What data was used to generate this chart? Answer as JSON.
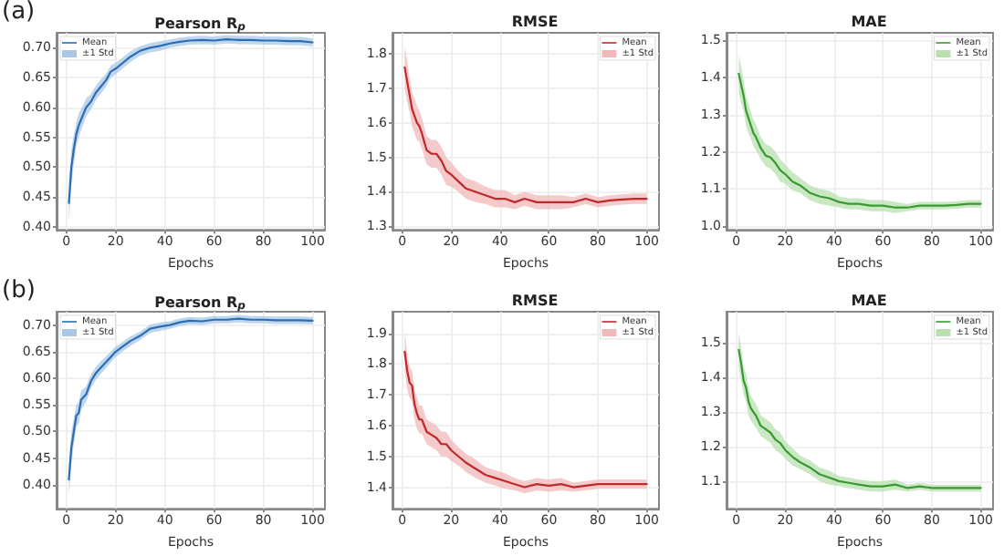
{
  "chart_data": [
    {
      "type": "line",
      "title": "Pearson R$_{p}$",
      "xlabel": "Epochs",
      "annotations": [
        "(a)"
      ],
      "legend": "top left",
      "grid": true,
      "line_style": "solid",
      "x": [
        1,
        2,
        3,
        4,
        5,
        6,
        7,
        8,
        10,
        12,
        14,
        16,
        18,
        20,
        23,
        26,
        30,
        34,
        38,
        42,
        46,
        50,
        55,
        60,
        65,
        70,
        75,
        80,
        85,
        90,
        95,
        100
      ],
      "xlim": [
        -4,
        105
      ],
      "xticks": [
        0,
        20,
        40,
        60,
        80,
        100
      ],
      "ylim": [
        0.395,
        0.725
      ],
      "yticks": [
        {
          "value": 0.4,
          "label": "0.40"
        },
        0.45,
        {
          "value": 0.5,
          "label": "0.50"
        },
        0.55,
        {
          "value": 0.6,
          "label": "0.60"
        },
        0.65,
        {
          "value": 0.7,
          "label": "0.70"
        }
      ],
      "series": [
        {
          "name": "Mean",
          "color": "#2a6db5",
          "values": [
            0.44,
            0.5,
            0.53,
            0.555,
            0.57,
            0.58,
            0.59,
            0.6,
            0.61,
            0.625,
            0.635,
            0.645,
            0.66,
            0.665,
            0.675,
            0.685,
            0.695,
            0.7,
            0.703,
            0.707,
            0.71,
            0.712,
            0.713,
            0.712,
            0.714,
            0.713,
            0.713,
            0.712,
            0.712,
            0.711,
            0.711,
            0.709
          ]
        },
        {
          "name": "±1 Std",
          "type": "area",
          "color": "#aac8e6",
          "values": [
            null,
            null,
            null,
            null,
            null,
            null,
            null,
            null,
            null,
            null,
            null,
            null,
            null,
            null,
            null,
            null,
            null,
            null,
            null,
            null,
            null,
            null,
            null,
            null,
            null,
            null,
            null,
            null,
            null,
            null,
            null,
            null
          ],
          "lower": [
            0.41,
            0.47,
            0.505,
            0.535,
            0.55,
            0.562,
            0.574,
            0.585,
            0.597,
            0.613,
            0.623,
            0.634,
            0.65,
            0.655,
            0.666,
            0.676,
            0.687,
            0.692,
            0.695,
            0.7,
            0.703,
            0.705,
            0.706,
            0.705,
            0.707,
            0.706,
            0.706,
            0.705,
            0.705,
            0.704,
            0.704,
            0.702
          ],
          "upper": [
            0.47,
            0.53,
            0.555,
            0.575,
            0.59,
            0.598,
            0.606,
            0.615,
            0.623,
            0.637,
            0.647,
            0.656,
            0.67,
            0.675,
            0.684,
            0.694,
            0.703,
            0.708,
            0.711,
            0.714,
            0.717,
            0.719,
            0.72,
            0.719,
            0.721,
            0.72,
            0.72,
            0.719,
            0.719,
            0.718,
            0.718,
            0.716
          ]
        }
      ]
    },
    {
      "type": "line",
      "title": "RMSE",
      "xlabel": "Epochs",
      "legend": "top right",
      "grid": true,
      "line_style": "solid",
      "x": [
        1,
        2,
        3,
        4,
        5,
        6,
        7,
        8,
        10,
        12,
        14,
        16,
        18,
        20,
        23,
        26,
        30,
        34,
        38,
        42,
        46,
        50,
        55,
        60,
        65,
        70,
        75,
        80,
        85,
        90,
        95,
        100
      ],
      "xlim": [
        -4,
        105
      ],
      "xticks": [
        0,
        20,
        40,
        60,
        80,
        100
      ],
      "ylim": [
        1.29,
        1.86
      ],
      "yticks": [
        1.3,
        1.4,
        1.5,
        1.6,
        1.7,
        1.8
      ],
      "series": [
        {
          "name": "Mean",
          "color": "#c0282a",
          "values": [
            1.76,
            1.72,
            1.68,
            1.64,
            1.62,
            1.6,
            1.59,
            1.57,
            1.52,
            1.51,
            1.51,
            1.49,
            1.46,
            1.45,
            1.43,
            1.41,
            1.4,
            1.39,
            1.38,
            1.38,
            1.37,
            1.38,
            1.37,
            1.37,
            1.37,
            1.37,
            1.38,
            1.37,
            1.375,
            1.378,
            1.38,
            1.38
          ]
        },
        {
          "name": "±1 Std",
          "type": "area",
          "color": "#f0b8b8",
          "values": [
            null,
            null,
            null,
            null,
            null,
            null,
            null,
            null,
            null,
            null,
            null,
            null,
            null,
            null,
            null,
            null,
            null,
            null,
            null,
            null,
            null,
            null,
            null,
            null,
            null,
            null,
            null,
            null,
            null,
            null,
            null,
            null
          ],
          "lower": [
            1.7,
            1.66,
            1.63,
            1.59,
            1.57,
            1.55,
            1.545,
            1.525,
            1.48,
            1.47,
            1.47,
            1.45,
            1.42,
            1.415,
            1.4,
            1.38,
            1.37,
            1.365,
            1.355,
            1.355,
            1.35,
            1.36,
            1.35,
            1.35,
            1.35,
            1.355,
            1.365,
            1.355,
            1.36,
            1.363,
            1.365,
            1.365
          ],
          "upper": [
            1.82,
            1.78,
            1.73,
            1.69,
            1.67,
            1.65,
            1.635,
            1.615,
            1.56,
            1.55,
            1.55,
            1.53,
            1.5,
            1.485,
            1.46,
            1.44,
            1.43,
            1.415,
            1.405,
            1.405,
            1.39,
            1.4,
            1.39,
            1.39,
            1.39,
            1.385,
            1.395,
            1.385,
            1.39,
            1.393,
            1.395,
            1.395
          ]
        }
      ]
    },
    {
      "type": "line",
      "title": "MAE",
      "xlabel": "Epochs",
      "legend": "top right",
      "grid": true,
      "line_style": "solid",
      "x": [
        1,
        2,
        3,
        4,
        5,
        6,
        7,
        8,
        10,
        12,
        14,
        16,
        18,
        20,
        23,
        26,
        30,
        34,
        38,
        42,
        46,
        50,
        55,
        60,
        65,
        70,
        75,
        80,
        85,
        90,
        95,
        100
      ],
      "xlim": [
        -4,
        105
      ],
      "xticks": [
        0,
        20,
        40,
        60,
        80,
        100
      ],
      "ylim": [
        0.99,
        1.52
      ],
      "yticks": [
        {
          "value": 1.0,
          "label": "1.0"
        },
        1.1,
        1.2,
        1.3,
        1.4,
        1.5
      ],
      "series": [
        {
          "name": "Mean",
          "color": "#3a9a32",
          "values": [
            1.41,
            1.38,
            1.35,
            1.31,
            1.29,
            1.27,
            1.25,
            1.24,
            1.21,
            1.19,
            1.185,
            1.17,
            1.15,
            1.14,
            1.12,
            1.11,
            1.09,
            1.08,
            1.075,
            1.065,
            1.06,
            1.06,
            1.055,
            1.055,
            1.05,
            1.05,
            1.055,
            1.055,
            1.055,
            1.057,
            1.06,
            1.06
          ]
        },
        {
          "name": "±1 Std",
          "type": "area",
          "color": "#b8e0b0",
          "values": [
            null,
            null,
            null,
            null,
            null,
            null,
            null,
            null,
            null,
            null,
            null,
            null,
            null,
            null,
            null,
            null,
            null,
            null,
            null,
            null,
            null,
            null,
            null,
            null,
            null,
            null,
            null,
            null,
            null,
            null,
            null,
            null
          ],
          "lower": [
            1.36,
            1.33,
            1.31,
            1.27,
            1.25,
            1.235,
            1.215,
            1.205,
            1.18,
            1.16,
            1.155,
            1.14,
            1.12,
            1.115,
            1.095,
            1.09,
            1.07,
            1.06,
            1.055,
            1.05,
            1.045,
            1.045,
            1.04,
            1.04,
            1.035,
            1.04,
            1.045,
            1.045,
            1.045,
            1.047,
            1.05,
            1.05
          ],
          "upper": [
            1.46,
            1.43,
            1.39,
            1.35,
            1.33,
            1.305,
            1.285,
            1.275,
            1.24,
            1.22,
            1.215,
            1.2,
            1.18,
            1.165,
            1.145,
            1.13,
            1.11,
            1.1,
            1.095,
            1.08,
            1.075,
            1.075,
            1.07,
            1.07,
            1.065,
            1.06,
            1.065,
            1.065,
            1.065,
            1.067,
            1.07,
            1.07
          ]
        }
      ]
    },
    {
      "type": "line",
      "title": "Pearson R$_{p}$",
      "xlabel": "Epochs",
      "annotations": [
        "(b)"
      ],
      "legend": "top left",
      "grid": true,
      "line_style": "solid",
      "x": [
        1,
        2,
        3,
        4,
        5,
        6,
        7,
        8,
        10,
        12,
        14,
        16,
        18,
        20,
        23,
        26,
        30,
        34,
        38,
        42,
        46,
        50,
        55,
        60,
        65,
        70,
        75,
        80,
        85,
        90,
        95,
        100
      ],
      "xlim": [
        -4,
        105
      ],
      "xticks": [
        0,
        20,
        40,
        60,
        80,
        100
      ],
      "ylim": [
        0.355,
        0.725
      ],
      "yticks": [
        {
          "value": 0.4,
          "label": "0.40"
        },
        0.45,
        {
          "value": 0.5,
          "label": "0.50"
        },
        0.55,
        {
          "value": 0.6,
          "label": "0.60"
        },
        0.65,
        {
          "value": 0.7,
          "label": "0.70"
        }
      ],
      "series": [
        {
          "name": "Mean",
          "color": "#2a6db5",
          "values": [
            0.41,
            0.47,
            0.5,
            0.53,
            0.535,
            0.56,
            0.565,
            0.57,
            0.595,
            0.61,
            0.62,
            0.63,
            0.64,
            0.65,
            0.66,
            0.67,
            0.68,
            0.693,
            0.697,
            0.7,
            0.705,
            0.708,
            0.707,
            0.71,
            0.71,
            0.712,
            0.71,
            0.71,
            0.709,
            0.709,
            0.709,
            0.708
          ]
        },
        {
          "name": "±1 Std",
          "type": "area",
          "color": "#aac8e6",
          "values": [
            null,
            null,
            null,
            null,
            null,
            null,
            null,
            null,
            null,
            null,
            null,
            null,
            null,
            null,
            null,
            null,
            null,
            null,
            null,
            null,
            null,
            null,
            null,
            null,
            null,
            null,
            null,
            null,
            null,
            null,
            null,
            null
          ],
          "lower": [
            0.38,
            0.44,
            0.475,
            0.51,
            0.515,
            0.542,
            0.549,
            0.555,
            0.582,
            0.598,
            0.608,
            0.619,
            0.63,
            0.64,
            0.651,
            0.661,
            0.672,
            0.685,
            0.689,
            0.693,
            0.698,
            0.701,
            0.7,
            0.703,
            0.703,
            0.705,
            0.703,
            0.703,
            0.702,
            0.702,
            0.702,
            0.701
          ],
          "upper": [
            0.44,
            0.5,
            0.525,
            0.55,
            0.555,
            0.578,
            0.581,
            0.585,
            0.608,
            0.622,
            0.632,
            0.641,
            0.65,
            0.66,
            0.669,
            0.679,
            0.688,
            0.701,
            0.705,
            0.707,
            0.712,
            0.715,
            0.714,
            0.717,
            0.717,
            0.719,
            0.717,
            0.717,
            0.716,
            0.716,
            0.716,
            0.715
          ]
        }
      ]
    },
    {
      "type": "line",
      "title": "RMSE",
      "xlabel": "Epochs",
      "legend": "top right",
      "grid": true,
      "line_style": "solid",
      "x": [
        1,
        2,
        3,
        4,
        5,
        6,
        7,
        8,
        10,
        12,
        14,
        16,
        18,
        20,
        23,
        26,
        30,
        34,
        38,
        42,
        46,
        50,
        55,
        60,
        65,
        70,
        75,
        80,
        85,
        90,
        95,
        100
      ],
      "xlim": [
        -4,
        105
      ],
      "xticks": [
        0,
        20,
        40,
        60,
        80,
        100
      ],
      "ylim": [
        1.33,
        1.97
      ],
      "yticks": [
        1.4,
        1.5,
        1.6,
        1.7,
        1.8,
        1.9
      ],
      "series": [
        {
          "name": "Mean",
          "color": "#c0282a",
          "values": [
            1.84,
            1.78,
            1.74,
            1.73,
            1.67,
            1.64,
            1.62,
            1.62,
            1.58,
            1.57,
            1.56,
            1.54,
            1.54,
            1.52,
            1.5,
            1.48,
            1.46,
            1.44,
            1.43,
            1.42,
            1.41,
            1.4,
            1.41,
            1.405,
            1.41,
            1.4,
            1.405,
            1.41,
            1.41,
            1.41,
            1.41,
            1.41
          ]
        },
        {
          "name": "±1 Std",
          "type": "area",
          "color": "#f0b8b8",
          "values": [
            null,
            null,
            null,
            null,
            null,
            null,
            null,
            null,
            null,
            null,
            null,
            null,
            null,
            null,
            null,
            null,
            null,
            null,
            null,
            null,
            null,
            null,
            null,
            null,
            null,
            null,
            null,
            null,
            null,
            null,
            null,
            null
          ],
          "lower": [
            1.78,
            1.72,
            1.69,
            1.68,
            1.62,
            1.59,
            1.575,
            1.575,
            1.54,
            1.53,
            1.52,
            1.5,
            1.5,
            1.485,
            1.47,
            1.45,
            1.43,
            1.415,
            1.405,
            1.395,
            1.39,
            1.38,
            1.39,
            1.385,
            1.39,
            1.385,
            1.39,
            1.395,
            1.395,
            1.395,
            1.395,
            1.395
          ],
          "upper": [
            1.9,
            1.84,
            1.79,
            1.78,
            1.72,
            1.69,
            1.665,
            1.665,
            1.62,
            1.61,
            1.6,
            1.58,
            1.58,
            1.555,
            1.53,
            1.51,
            1.49,
            1.465,
            1.455,
            1.445,
            1.43,
            1.42,
            1.43,
            1.425,
            1.43,
            1.415,
            1.42,
            1.425,
            1.425,
            1.425,
            1.425,
            1.425
          ]
        }
      ]
    },
    {
      "type": "line",
      "title": "MAE",
      "xlabel": "Epochs",
      "legend": "top right",
      "grid": true,
      "line_style": "solid",
      "x": [
        1,
        2,
        3,
        4,
        5,
        6,
        7,
        8,
        10,
        12,
        14,
        16,
        18,
        20,
        23,
        26,
        30,
        34,
        38,
        42,
        46,
        50,
        55,
        60,
        65,
        70,
        75,
        80,
        85,
        90,
        95,
        100
      ],
      "xlim": [
        -4,
        105
      ],
      "xticks": [
        0,
        20,
        40,
        60,
        80,
        100
      ],
      "ylim": [
        1.02,
        1.59
      ],
      "yticks": [
        1.1,
        1.2,
        1.3,
        1.4,
        1.5
      ],
      "series": [
        {
          "name": "Mean",
          "color": "#3a9a32",
          "values": [
            1.48,
            1.44,
            1.39,
            1.37,
            1.33,
            1.31,
            1.3,
            1.29,
            1.26,
            1.25,
            1.24,
            1.22,
            1.21,
            1.19,
            1.17,
            1.155,
            1.14,
            1.12,
            1.11,
            1.1,
            1.095,
            1.09,
            1.085,
            1.085,
            1.09,
            1.08,
            1.085,
            1.08,
            1.08,
            1.08,
            1.08,
            1.08
          ]
        },
        {
          "name": "±1 Std",
          "type": "area",
          "color": "#b8e0b0",
          "values": [
            null,
            null,
            null,
            null,
            null,
            null,
            null,
            null,
            null,
            null,
            null,
            null,
            null,
            null,
            null,
            null,
            null,
            null,
            null,
            null,
            null,
            null,
            null,
            null,
            null,
            null,
            null,
            null,
            null,
            null,
            null,
            null
          ],
          "lower": [
            1.43,
            1.39,
            1.35,
            1.33,
            1.29,
            1.275,
            1.265,
            1.255,
            1.23,
            1.22,
            1.21,
            1.19,
            1.18,
            1.165,
            1.145,
            1.135,
            1.12,
            1.1,
            1.09,
            1.085,
            1.08,
            1.075,
            1.07,
            1.07,
            1.075,
            1.07,
            1.075,
            1.07,
            1.07,
            1.07,
            1.07,
            1.07
          ],
          "upper": [
            1.53,
            1.49,
            1.43,
            1.41,
            1.37,
            1.345,
            1.335,
            1.325,
            1.29,
            1.28,
            1.27,
            1.25,
            1.24,
            1.215,
            1.195,
            1.175,
            1.16,
            1.14,
            1.13,
            1.115,
            1.11,
            1.105,
            1.1,
            1.1,
            1.105,
            1.09,
            1.095,
            1.09,
            1.09,
            1.09,
            1.09,
            1.09
          ]
        }
      ]
    }
  ]
}
